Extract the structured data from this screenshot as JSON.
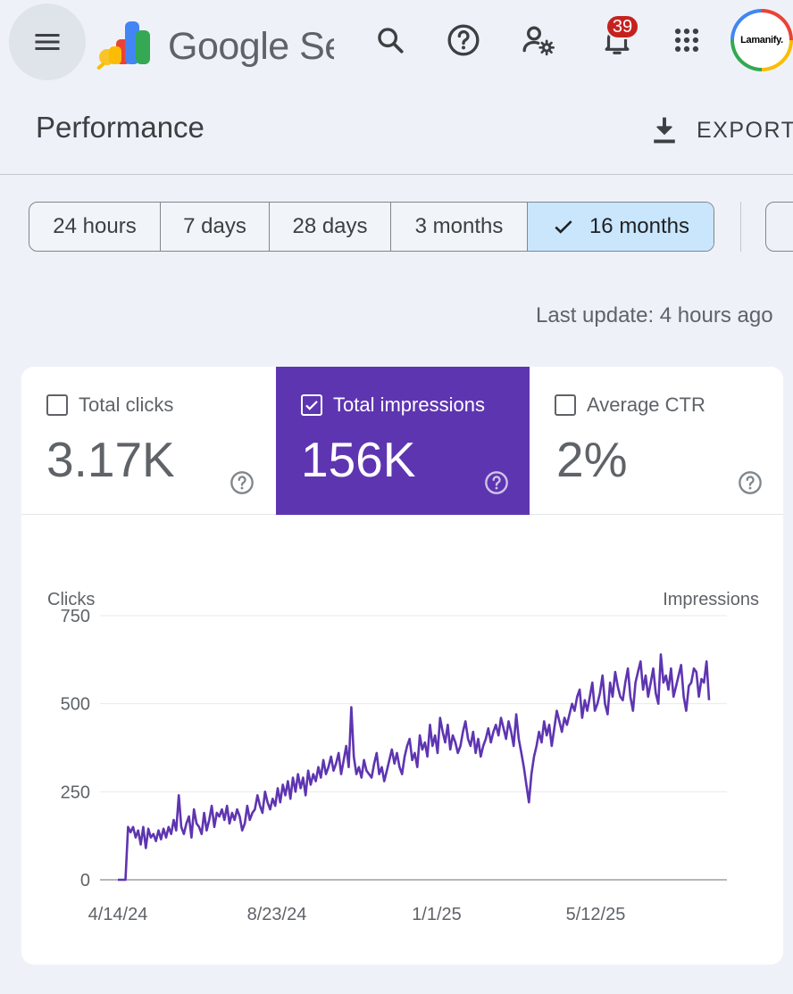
{
  "topbar": {
    "brand_text": "Google Search Console",
    "notification_count": "39",
    "avatar_text": "Lamanify."
  },
  "header": {
    "title": "Performance",
    "export_label": "EXPORT"
  },
  "date_range": {
    "chips": [
      {
        "label": "24 hours",
        "selected": false
      },
      {
        "label": "7 days",
        "selected": false
      },
      {
        "label": "28 days",
        "selected": false
      },
      {
        "label": "3 months",
        "selected": false
      },
      {
        "label": "16 months",
        "selected": true
      }
    ]
  },
  "last_update": "Last update: 4 hours ago",
  "metrics": [
    {
      "label": "Total clicks",
      "value": "3.17K",
      "checked": false
    },
    {
      "label": "Total impressions",
      "value": "156K",
      "checked": true
    },
    {
      "label": "Average CTR",
      "value": "2%",
      "checked": false
    }
  ],
  "colors": {
    "accent": "#5e35b1",
    "line": "#5e35b1",
    "chip_selected": "#c9e6fd"
  },
  "chart_data": {
    "type": "line",
    "ylabel_left": "Clicks",
    "ylabel_right": "Impressions",
    "y_ticks": [
      0,
      250,
      500,
      750
    ],
    "ylim": [
      0,
      750
    ],
    "x_tick_labels": [
      "4/14/24",
      "8/23/24",
      "1/1/25",
      "5/12/25"
    ],
    "grid": true,
    "series": [
      {
        "name": "Total impressions",
        "x_start": "4/14/24",
        "x_end": "8/8/25",
        "values": [
          0,
          0,
          0,
          0,
          150,
          135,
          150,
          120,
          140,
          100,
          150,
          90,
          145,
          120,
          130,
          110,
          140,
          115,
          145,
          120,
          150,
          130,
          170,
          140,
          240,
          150,
          130,
          160,
          180,
          120,
          200,
          160,
          150,
          130,
          190,
          140,
          170,
          210,
          150,
          190,
          180,
          200,
          170,
          210,
          160,
          190,
          170,
          200,
          180,
          140,
          160,
          210,
          170,
          190,
          200,
          240,
          210,
          190,
          250,
          220,
          200,
          230,
          210,
          260,
          220,
          270,
          240,
          280,
          230,
          290,
          250,
          300,
          260,
          290,
          240,
          310,
          270,
          300,
          280,
          320,
          290,
          340,
          300,
          320,
          350,
          310,
          330,
          360,
          300,
          340,
          380,
          320,
          490,
          350,
          300,
          320,
          290,
          340,
          310,
          300,
          290,
          330,
          360,
          300,
          320,
          280,
          310,
          340,
          370,
          330,
          360,
          320,
          300,
          350,
          380,
          400,
          340,
          360,
          320,
          410,
          370,
          390,
          350,
          440,
          380,
          410,
          360,
          460,
          420,
          390,
          440,
          370,
          410,
          390,
          360,
          380,
          420,
          450,
          400,
          380,
          420,
          360,
          400,
          350,
          380,
          400,
          430,
          390,
          420,
          440,
          410,
          460,
          430,
          400,
          450,
          420,
          380,
          470,
          400,
          360,
          320,
          270,
          220,
          300,
          350,
          380,
          420,
          390,
          450,
          410,
          440,
          380,
          430,
          480,
          450,
          420,
          460,
          440,
          470,
          500,
          480,
          520,
          540,
          460,
          510,
          480,
          520,
          560,
          480,
          500,
          530,
          580,
          500,
          470,
          560,
          520,
          590,
          550,
          520,
          510,
          560,
          600,
          520,
          480,
          560,
          590,
          620,
          540,
          580,
          520,
          560,
          600,
          530,
          500,
          640,
          560,
          580,
          540,
          600,
          520,
          550,
          580,
          610,
          520,
          480,
          550,
          560,
          600,
          590,
          520,
          570,
          560,
          620,
          510
        ]
      }
    ]
  }
}
